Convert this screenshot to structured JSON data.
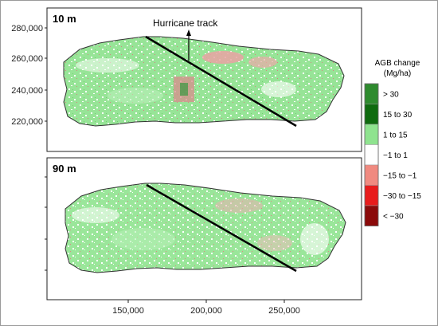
{
  "figure": {
    "panels": [
      {
        "id": "top",
        "label": "10 m"
      },
      {
        "id": "bottom",
        "label": "90 m"
      }
    ],
    "annotation": "Hurricane track",
    "y_axis_ticks": [
      "280,000",
      "260,000",
      "240,000",
      "220,000"
    ],
    "x_axis_ticks": [
      "150,000",
      "200,000",
      "250,000"
    ]
  },
  "legend": {
    "title_line1": "AGB change",
    "title_line2": "(Mg/ha)",
    "items": [
      {
        "label": "> 30",
        "color": "#2e8b2e"
      },
      {
        "label": "15 to 30",
        "color": "#0f6b0f"
      },
      {
        "label": "1 to 15",
        "color": "#8fe38f"
      },
      {
        "label": "−1 to 1",
        "color": "#ffffff"
      },
      {
        "label": "−15 to −1",
        "color": "#f08a80"
      },
      {
        "label": "−30 to −15",
        "color": "#e81c1c"
      },
      {
        "label": "< −30",
        "color": "#8b0a0a"
      }
    ]
  },
  "colors": {
    "vegetation_gain": "#8fe38f",
    "loss": "#e07070",
    "track": "#000000"
  }
}
